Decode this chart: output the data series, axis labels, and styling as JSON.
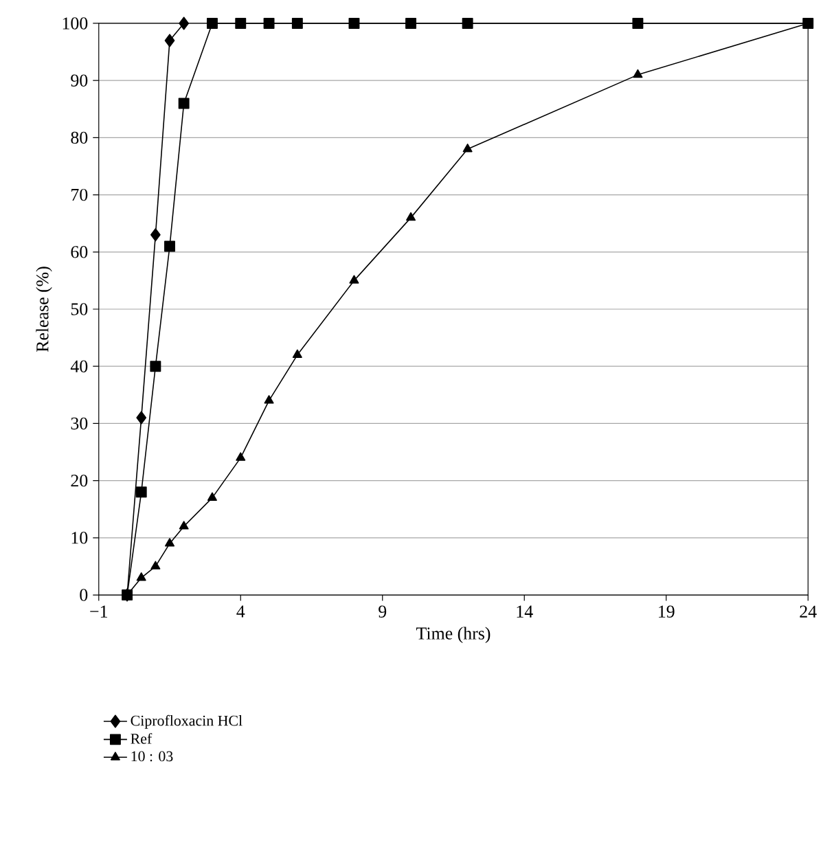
{
  "chart_data": {
    "type": "line",
    "xlabel": "Time (hrs)",
    "ylabel": "Release (%)",
    "xlim": [
      -1,
      24
    ],
    "xticks": [
      {
        "value": -1,
        "label": "−1"
      },
      4,
      9,
      14,
      19,
      24
    ],
    "ylim": [
      0,
      100
    ],
    "yticks": [
      0,
      10,
      20,
      30,
      40,
      50,
      60,
      70,
      80,
      90,
      100
    ],
    "grid": "y",
    "legend": "bottom left",
    "series": [
      {
        "name": "Ciprofloxacin HCl",
        "color": "#000000",
        "marker": "diamond",
        "x": [
          0,
          0.5,
          1,
          1.5,
          2
        ],
        "values": [
          0,
          31,
          63,
          97,
          100
        ]
      },
      {
        "name": "Ref",
        "color": "#000000",
        "marker": "square",
        "x": [
          0,
          0.5,
          1,
          1.5,
          2,
          3,
          4,
          5,
          6,
          8,
          10,
          12,
          18,
          24
        ],
        "values": [
          0,
          18,
          40,
          61,
          86,
          100,
          100,
          100,
          100,
          100,
          100,
          100,
          100,
          100
        ]
      },
      {
        "name": "10 : 03",
        "color": "#000000",
        "marker": "triangle",
        "x": [
          0,
          0.5,
          1,
          1.5,
          2,
          3,
          4,
          5,
          6,
          8,
          10,
          12,
          18,
          24
        ],
        "values": [
          0,
          3,
          5,
          9,
          12,
          17,
          24,
          34,
          42,
          55,
          66,
          78,
          91,
          100
        ]
      }
    ]
  }
}
